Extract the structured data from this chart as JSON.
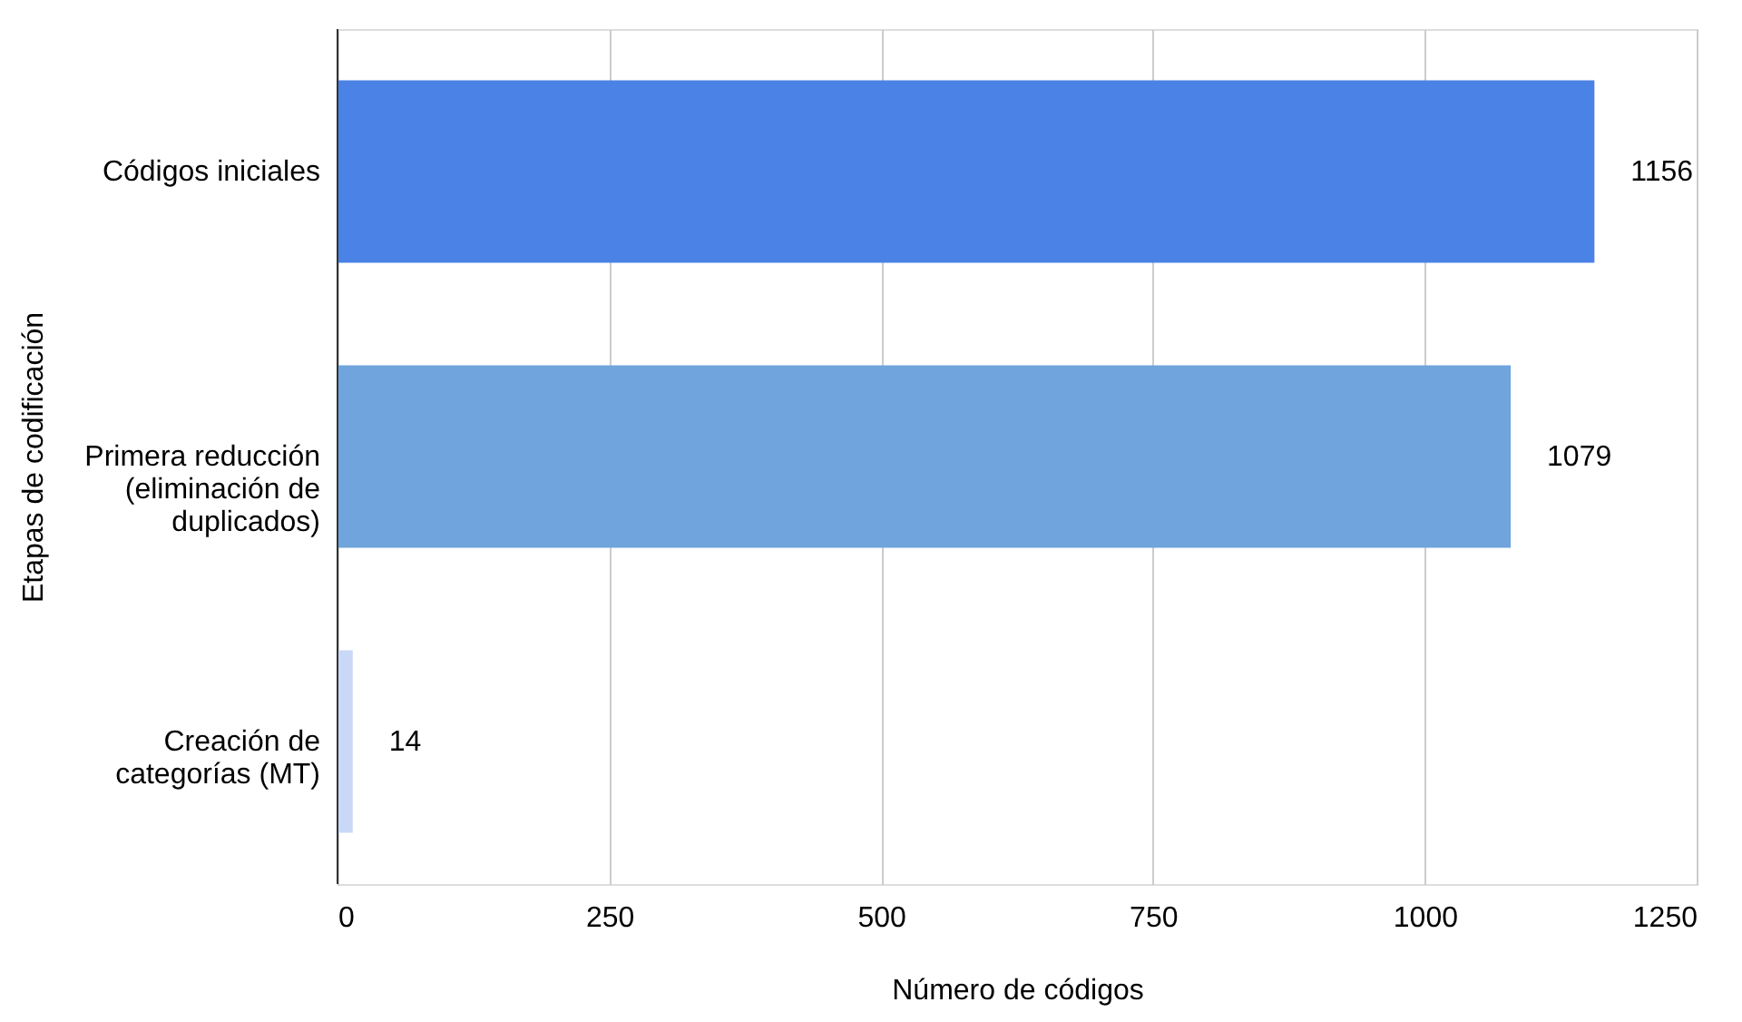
{
  "chart_data": {
    "type": "bar",
    "orientation": "horizontal",
    "xlabel": "Número de códigos",
    "ylabel": "Etapas de codificación",
    "categories": [
      "Códigos iniciales",
      "Primera reducción (eliminación de duplicados)",
      "Creación de categorías (MT)"
    ],
    "values": [
      1156,
      1079,
      14
    ],
    "colors": [
      "#4a82e5",
      "#6fa4dc",
      "#c9d8f6"
    ],
    "xlim": [
      0,
      1250
    ],
    "xticks": [
      0,
      250,
      500,
      750,
      1000,
      1250
    ],
    "grid": "x",
    "data_labels": true
  }
}
